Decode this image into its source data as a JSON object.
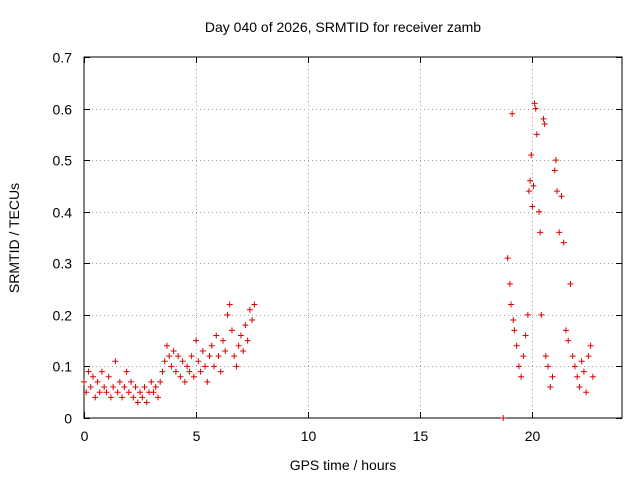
{
  "chart_data": {
    "type": "scatter",
    "title": "Day 040 of 2026, SRMTID for receiver zamb",
    "xlabel": "GPS time / hours",
    "ylabel": "SRMTID / TECUs",
    "xlim": [
      0,
      24
    ],
    "ylim": [
      0,
      0.7
    ],
    "xticks": [
      0,
      5,
      10,
      15,
      20
    ],
    "xtick_labels": [
      "0",
      "5",
      "10",
      "15",
      "20"
    ],
    "yticks": [
      0,
      0.1,
      0.2,
      0.3,
      0.4,
      0.5,
      0.6,
      0.7
    ],
    "ytick_labels": [
      "0",
      "0.1",
      "0.2",
      "0.3",
      "0.4",
      "0.5",
      "0.6",
      "0.7"
    ],
    "grid": true,
    "marker": "plus",
    "color": "#e00000",
    "series": [
      {
        "name": "SRMTID",
        "points": [
          [
            0.0,
            0.07
          ],
          [
            0.1,
            0.05
          ],
          [
            0.2,
            0.09
          ],
          [
            0.3,
            0.06
          ],
          [
            0.4,
            0.08
          ],
          [
            0.5,
            0.04
          ],
          [
            0.6,
            0.07
          ],
          [
            0.7,
            0.05
          ],
          [
            0.8,
            0.09
          ],
          [
            0.9,
            0.06
          ],
          [
            1.0,
            0.05
          ],
          [
            1.1,
            0.08
          ],
          [
            1.2,
            0.04
          ],
          [
            1.3,
            0.06
          ],
          [
            1.4,
            0.11
          ],
          [
            1.5,
            0.05
          ],
          [
            1.6,
            0.07
          ],
          [
            1.7,
            0.04
          ],
          [
            1.8,
            0.06
          ],
          [
            1.9,
            0.09
          ],
          [
            2.0,
            0.05
          ],
          [
            2.1,
            0.07
          ],
          [
            2.2,
            0.04
          ],
          [
            2.3,
            0.06
          ],
          [
            2.4,
            0.03
          ],
          [
            2.5,
            0.05
          ],
          [
            2.6,
            0.04
          ],
          [
            2.7,
            0.06
          ],
          [
            2.8,
            0.03
          ],
          [
            2.9,
            0.05
          ],
          [
            3.0,
            0.07
          ],
          [
            3.1,
            0.05
          ],
          [
            3.2,
            0.06
          ],
          [
            3.3,
            0.04
          ],
          [
            3.4,
            0.07
          ],
          [
            3.5,
            0.09
          ],
          [
            3.6,
            0.11
          ],
          [
            3.7,
            0.14
          ],
          [
            3.8,
            0.12
          ],
          [
            3.9,
            0.1
          ],
          [
            4.0,
            0.13
          ],
          [
            4.1,
            0.09
          ],
          [
            4.2,
            0.12
          ],
          [
            4.3,
            0.08
          ],
          [
            4.4,
            0.11
          ],
          [
            4.5,
            0.07
          ],
          [
            4.6,
            0.1
          ],
          [
            4.7,
            0.09
          ],
          [
            4.8,
            0.12
          ],
          [
            4.9,
            0.08
          ],
          [
            5.0,
            0.15
          ],
          [
            5.1,
            0.11
          ],
          [
            5.2,
            0.09
          ],
          [
            5.3,
            0.13
          ],
          [
            5.4,
            0.1
          ],
          [
            5.5,
            0.07
          ],
          [
            5.6,
            0.12
          ],
          [
            5.7,
            0.14
          ],
          [
            5.8,
            0.1
          ],
          [
            5.9,
            0.16
          ],
          [
            6.0,
            0.12
          ],
          [
            6.1,
            0.09
          ],
          [
            6.2,
            0.15
          ],
          [
            6.3,
            0.13
          ],
          [
            6.4,
            0.2
          ],
          [
            6.5,
            0.22
          ],
          [
            6.6,
            0.17
          ],
          [
            6.7,
            0.12
          ],
          [
            6.8,
            0.1
          ],
          [
            6.9,
            0.14
          ],
          [
            7.0,
            0.16
          ],
          [
            7.1,
            0.13
          ],
          [
            7.2,
            0.18
          ],
          [
            7.3,
            0.15
          ],
          [
            7.4,
            0.21
          ],
          [
            7.5,
            0.19
          ],
          [
            7.6,
            0.22
          ],
          [
            18.7,
            0.0
          ],
          [
            18.9,
            0.31
          ],
          [
            19.0,
            0.26
          ],
          [
            19.05,
            0.22
          ],
          [
            19.1,
            0.59
          ],
          [
            19.15,
            0.19
          ],
          [
            19.2,
            0.17
          ],
          [
            19.3,
            0.14
          ],
          [
            19.4,
            0.1
          ],
          [
            19.5,
            0.08
          ],
          [
            19.6,
            0.12
          ],
          [
            19.7,
            0.16
          ],
          [
            19.8,
            0.2
          ],
          [
            19.85,
            0.44
          ],
          [
            19.9,
            0.46
          ],
          [
            19.95,
            0.51
          ],
          [
            20.0,
            0.41
          ],
          [
            20.05,
            0.45
          ],
          [
            20.1,
            0.61
          ],
          [
            20.15,
            0.6
          ],
          [
            20.2,
            0.55
          ],
          [
            20.3,
            0.4
          ],
          [
            20.35,
            0.36
          ],
          [
            20.4,
            0.2
          ],
          [
            20.5,
            0.58
          ],
          [
            20.55,
            0.57
          ],
          [
            20.6,
            0.12
          ],
          [
            20.7,
            0.1
          ],
          [
            20.8,
            0.06
          ],
          [
            20.9,
            0.08
          ],
          [
            21.0,
            0.48
          ],
          [
            21.05,
            0.5
          ],
          [
            21.1,
            0.44
          ],
          [
            21.2,
            0.36
          ],
          [
            21.3,
            0.43
          ],
          [
            21.4,
            0.34
          ],
          [
            21.5,
            0.17
          ],
          [
            21.6,
            0.15
          ],
          [
            21.7,
            0.26
          ],
          [
            21.8,
            0.12
          ],
          [
            21.9,
            0.1
          ],
          [
            22.0,
            0.08
          ],
          [
            22.1,
            0.06
          ],
          [
            22.2,
            0.11
          ],
          [
            22.3,
            0.09
          ],
          [
            22.4,
            0.05
          ],
          [
            22.5,
            0.12
          ],
          [
            22.6,
            0.14
          ],
          [
            22.7,
            0.08
          ]
        ]
      }
    ]
  }
}
